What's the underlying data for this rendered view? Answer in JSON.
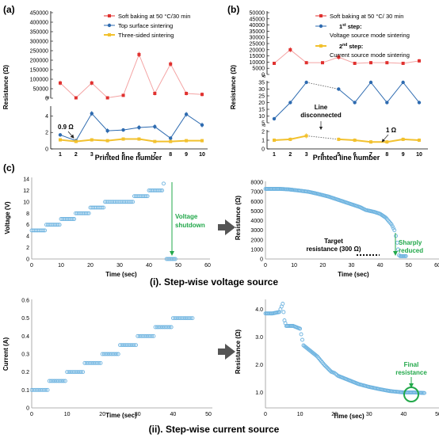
{
  "panel_labels": {
    "a": "(a)",
    "b": "(b)",
    "c": "(c)"
  },
  "section_labels": {
    "i": "(i). Step-wise voltage source",
    "ii": "(ii). Step-wise current source"
  },
  "colors": {
    "red": "#e0312f",
    "blue": "#2e6bb0",
    "yellow": "#f2c12e",
    "pale_red": "#f4a3a3",
    "pale_blue": "#a9c4e6",
    "pale_yellow": "#f8e6a0",
    "circle": "#6fb4e0",
    "green": "#22a84a",
    "arrow": "#555555"
  },
  "chart_data": [
    {
      "id": "a",
      "type": "line",
      "xlabel": "Printed line number",
      "ylabel": "Resistance (Ω)",
      "x": [
        1,
        2,
        3,
        4,
        5,
        6,
        7,
        8,
        9,
        10
      ],
      "upper_ticks": [
        "0",
        "50000",
        "100000",
        "150000",
        "200000",
        "250000",
        "300000",
        "350000",
        "400000",
        "450000"
      ],
      "lower_ticks": [
        "0",
        "2",
        "4"
      ],
      "upper_range": [
        0,
        450000
      ],
      "lower_range": [
        0,
        5
      ],
      "series": [
        {
          "name": "Soft baking at 50 °C/30 min",
          "color": "red",
          "values": [
            80000,
            2000,
            80000,
            2000,
            15000,
            230000,
            25000,
            180000,
            25000,
            20000
          ],
          "err": [
            12000,
            0,
            12000,
            0,
            6000,
            14000,
            10000,
            14000,
            10000,
            10000
          ]
        },
        {
          "name": "Top surface sintering",
          "color": "blue",
          "values": [
            1.7,
            1.0,
            4.3,
            2.2,
            2.3,
            2.6,
            2.7,
            1.3,
            4.2,
            2.9
          ],
          "err": [
            0.2,
            0.1,
            0.3,
            0.3,
            0.2,
            0.3,
            0.3,
            0.2,
            0.3,
            0.3
          ]
        },
        {
          "name": "Three-sided sintering",
          "color": "yellow",
          "values": [
            1.1,
            0.9,
            1.1,
            1.0,
            1.2,
            1.2,
            0.9,
            0.9,
            1.0,
            1.0
          ],
          "err": [
            0.2,
            0.1,
            0.2,
            0.2,
            0.2,
            0.2,
            0.1,
            0.1,
            0.2,
            0.2
          ]
        }
      ],
      "annotations": [
        {
          "text": "0.9 Ω"
        }
      ]
    },
    {
      "id": "b",
      "type": "line",
      "xlabel": "Printed line number",
      "ylabel": "Resistance (Ω)",
      "x": [
        1,
        2,
        3,
        4,
        5,
        6,
        7,
        8,
        9,
        10
      ],
      "upper_ticks": [
        "0",
        "5000",
        "10000",
        "15000",
        "20000",
        "25000",
        "30000",
        "35000",
        "40000",
        "45000",
        "50000"
      ],
      "middle_ticks": [
        "5",
        "10",
        "15",
        "20",
        "25",
        "30",
        "35"
      ],
      "lower_ticks": [
        "0",
        "1",
        "2"
      ],
      "upper_range": [
        0,
        50000
      ],
      "middle_range": [
        5,
        35
      ],
      "lower_range": [
        0,
        2
      ],
      "series": [
        {
          "name": "Soft baking at 50 °C/ 30 min",
          "color": "red",
          "values": [
            9000,
            20000,
            9500,
            9500,
            14000,
            9000,
            9500,
            9500,
            9000,
            11000
          ],
          "err": [
            1200,
            2000,
            1200,
            1200,
            2000,
            1200,
            1200,
            1200,
            1200,
            1500
          ]
        },
        {
          "name": "1st step: Voltage source mode sintering",
          "color": "blue",
          "values": [
            8,
            20,
            35,
            null,
            30,
            20,
            35,
            20,
            35,
            20
          ],
          "err": [
            0.8,
            1,
            1,
            null,
            1,
            1,
            1,
            1,
            1,
            1
          ]
        },
        {
          "name": "2nd step: Current source mode sintering",
          "color": "yellow",
          "values": [
            1,
            1.1,
            1.5,
            null,
            1.1,
            1,
            0.8,
            0.8,
            1.1,
            1
          ],
          "err": [
            0.2,
            0.2,
            0.3,
            null,
            0.2,
            0.2,
            0.2,
            0.2,
            0.2,
            0.2
          ]
        }
      ],
      "legend_text": {
        "s1_line1": "Soft baking at 50 °C/ 30 min",
        "s2_sup": "st",
        "s2_line1": " step:",
        "s2_num": "1",
        "s2_line2": "Voltage source mode sintering",
        "s3_num": "2",
        "s3_sup": "nd",
        "s3_line1": " step:",
        "s3_line2": "Current source mode sintering"
      },
      "annotations": [
        {
          "text": "Line"
        },
        {
          "text": "disconnected"
        },
        {
          "text": "1 Ω"
        }
      ]
    },
    {
      "id": "ci_left",
      "type": "scatter",
      "xlabel": "Time (sec)",
      "ylabel": "Voltage (V)",
      "xlim": [
        0,
        60
      ],
      "ylim": [
        0,
        14
      ],
      "xticks": [
        "0",
        "10",
        "20",
        "30",
        "40",
        "50",
        "60"
      ],
      "yticks": [
        "0",
        "2",
        "4",
        "6",
        "8",
        "10",
        "12",
        "14"
      ],
      "steps": [
        [
          0,
          5,
          5
        ],
        [
          5,
          10,
          6
        ],
        [
          10,
          15,
          7
        ],
        [
          15,
          20,
          8
        ],
        [
          20,
          25,
          9
        ],
        [
          25,
          35,
          10
        ],
        [
          35,
          40,
          11
        ],
        [
          40,
          45,
          12
        ]
      ],
      "extra_points": [
        [
          45,
          13.2
        ]
      ],
      "drop": [
        [
          46,
          49,
          0
        ]
      ],
      "annotations": [
        {
          "text": "Voltage"
        },
        {
          "text": "shutdown"
        }
      ]
    },
    {
      "id": "ci_right",
      "type": "scatter",
      "xlabel": "Time (sec)",
      "ylabel": "Resistance (Ω)",
      "xlim": [
        0,
        60
      ],
      "ylim": [
        0,
        8000
      ],
      "xticks": [
        "0",
        "10",
        "20",
        "30",
        "40",
        "50",
        "60"
      ],
      "yticks": [
        "0",
        "1000",
        "2000",
        "3000",
        "4000",
        "5000",
        "6000",
        "7000",
        "8000"
      ],
      "curve": [
        [
          0,
          7300
        ],
        [
          5,
          7300
        ],
        [
          8,
          7250
        ],
        [
          11,
          7150
        ],
        [
          15,
          7000
        ],
        [
          18,
          6800
        ],
        [
          20,
          6650
        ],
        [
          22,
          6500
        ],
        [
          25,
          6200
        ],
        [
          28,
          5900
        ],
        [
          30,
          5700
        ],
        [
          33,
          5400
        ],
        [
          35,
          5100
        ],
        [
          38,
          4900
        ],
        [
          40,
          4700
        ],
        [
          42,
          4300
        ],
        [
          44,
          3600
        ],
        [
          45,
          3000
        ],
        [
          45.5,
          2400
        ],
        [
          46,
          1700
        ],
        [
          46.3,
          1000
        ],
        [
          46.6,
          400
        ],
        [
          47,
          300
        ],
        [
          48,
          300
        ],
        [
          49,
          300
        ]
      ],
      "annotations": [
        {
          "text": "Target"
        },
        {
          "text": "resistance (300 Ω)"
        },
        {
          "text": "Sharply"
        },
        {
          "text": "reduced"
        }
      ]
    },
    {
      "id": "cii_left",
      "type": "scatter",
      "xlabel": "Time (sec)",
      "ylabel": "Current (A)",
      "xlim": [
        0,
        50
      ],
      "ylim": [
        0,
        0.6
      ],
      "xticks": [
        "0",
        "10",
        "20",
        "30",
        "40",
        "50"
      ],
      "yticks": [
        "0",
        "0.1",
        "0.2",
        "0.3",
        "0.4",
        "0.5",
        "0.6"
      ],
      "steps": [
        [
          0,
          5,
          0.1
        ],
        [
          5,
          10,
          0.15
        ],
        [
          10,
          15,
          0.2
        ],
        [
          15,
          20,
          0.25
        ],
        [
          20,
          25,
          0.3
        ],
        [
          25,
          30,
          0.35
        ],
        [
          30,
          35,
          0.4
        ],
        [
          35,
          40,
          0.45
        ],
        [
          40,
          46,
          0.5
        ]
      ]
    },
    {
      "id": "cii_right",
      "type": "scatter",
      "xlabel": "Time (sec)",
      "ylabel": "Resistance (Ω)",
      "xlim": [
        0,
        50
      ],
      "ylim": [
        0.5,
        4.3
      ],
      "xticks": [
        "0",
        "10",
        "20",
        "30",
        "40",
        "50"
      ],
      "yticks": [
        "1.0",
        "2.0",
        "3.0",
        "4.0"
      ],
      "curve": [
        [
          0,
          3.85
        ],
        [
          2,
          3.85
        ],
        [
          4,
          3.9
        ],
        [
          5,
          4.2
        ],
        [
          5.5,
          3.6
        ],
        [
          6,
          3.4
        ],
        [
          8,
          3.4
        ],
        [
          10,
          3.3
        ],
        [
          11,
          2.7
        ],
        [
          13,
          2.5
        ],
        [
          15,
          2.3
        ],
        [
          17,
          2.0
        ],
        [
          19,
          1.75
        ],
        [
          20,
          1.7
        ],
        [
          21,
          1.6
        ],
        [
          23,
          1.5
        ],
        [
          25,
          1.4
        ],
        [
          27,
          1.3
        ],
        [
          30,
          1.2
        ],
        [
          33,
          1.12
        ],
        [
          36,
          1.05
        ],
        [
          40,
          1.0
        ],
        [
          43,
          1.0
        ],
        [
          46,
          0.98
        ]
      ],
      "annotations": [
        {
          "text": "Final"
        },
        {
          "text": "resistance"
        }
      ]
    }
  ]
}
